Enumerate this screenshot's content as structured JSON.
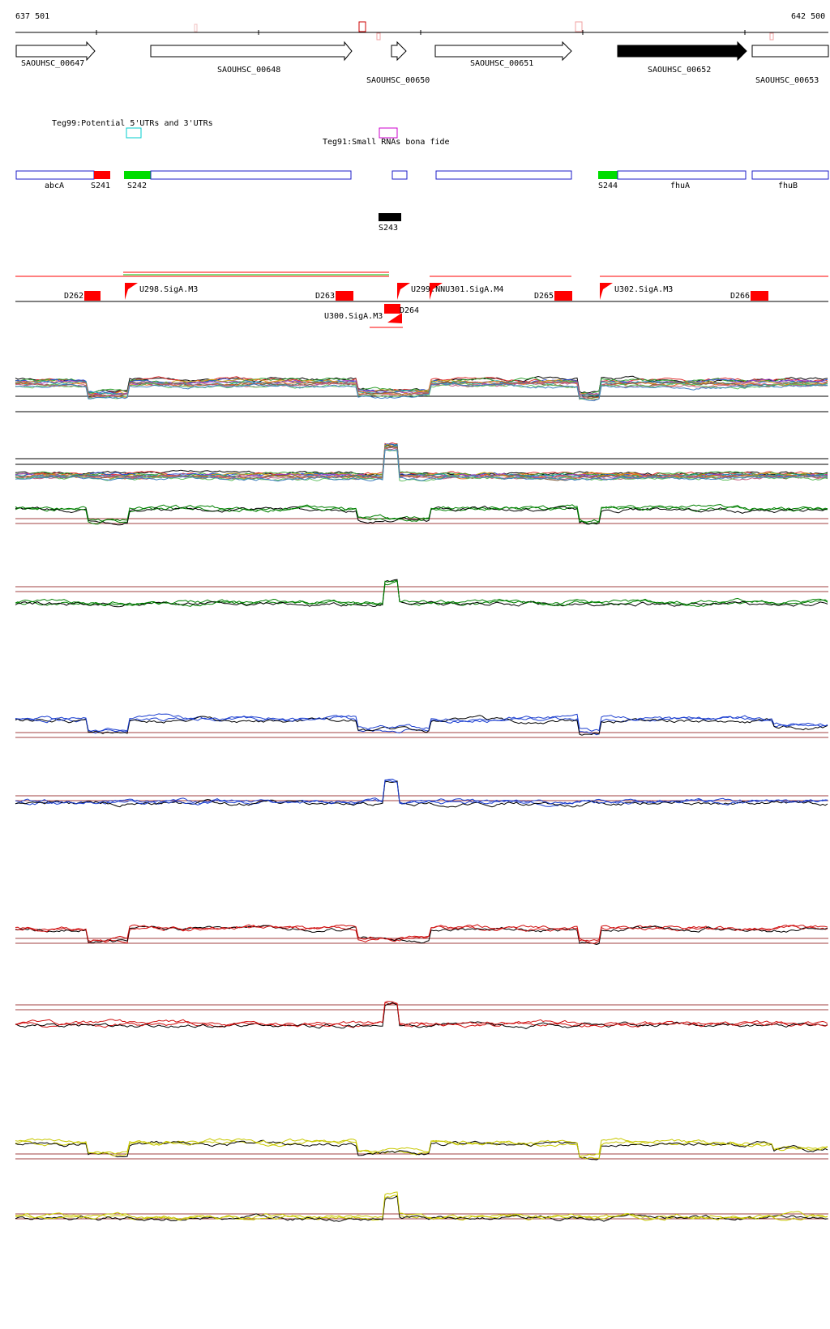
{
  "ruler": {
    "start": "637 501",
    "end": "642 500"
  },
  "genes": [
    {
      "id": "SAOUHSC_00647",
      "strand": "+",
      "filled": false
    },
    {
      "id": "SAOUHSC_00648",
      "strand": "+",
      "filled": false
    },
    {
      "id": "SAOUHSC_00650",
      "strand": "+",
      "filled": false
    },
    {
      "id": "SAOUHSC_00651",
      "strand": "+",
      "filled": false
    },
    {
      "id": "SAOUHSC_00652",
      "strand": "+",
      "filled": true
    },
    {
      "id": "SAOUHSC_00653",
      "strand": "+",
      "filled": false
    }
  ],
  "annotations": [
    {
      "label": "Teg99:Potential 5'UTRs and 3'UTRs",
      "color": "#00cccc"
    },
    {
      "label": "Teg91:Small RNAs bona fide",
      "color": "#cc00cc"
    }
  ],
  "features": [
    {
      "label": "abcA",
      "kind": "gene"
    },
    {
      "label": "S241",
      "kind": "red"
    },
    {
      "label": "S242",
      "kind": "green"
    },
    {
      "label": "S243",
      "kind": "black"
    },
    {
      "label": "S244",
      "kind": "green"
    },
    {
      "label": "fhuA",
      "kind": "gene"
    },
    {
      "label": "fhuB",
      "kind": "gene"
    }
  ],
  "tss": [
    {
      "label": "D262"
    },
    {
      "label": "U298.SigA.M3"
    },
    {
      "label": "D263"
    },
    {
      "label": "U299.NNU301.SigA.M4"
    },
    {
      "label": "D264"
    },
    {
      "label": "U300.SigA.M3"
    },
    {
      "label": "D265"
    },
    {
      "label": "U302.SigA.M3"
    },
    {
      "label": "D266"
    }
  ],
  "tracks": [
    {
      "name": "multi-condition-forward",
      "color": "#888888"
    },
    {
      "name": "multi-condition-reverse",
      "color": "#888888"
    },
    {
      "name": "green-forward",
      "color": "#008000"
    },
    {
      "name": "green-reverse",
      "color": "#008000"
    },
    {
      "name": "blue-forward",
      "color": "#1c3fd0"
    },
    {
      "name": "blue-reverse",
      "color": "#1c3fd0"
    },
    {
      "name": "red-forward",
      "color": "#d01010"
    },
    {
      "name": "red-reverse",
      "color": "#d01010"
    },
    {
      "name": "yellow-forward",
      "color": "#c8c800"
    },
    {
      "name": "yellow-reverse",
      "color": "#c8c800"
    }
  ],
  "colors": {
    "threshold": "#a04040",
    "gene_outline": "#1c1cc8",
    "tss": "#ff0000"
  }
}
